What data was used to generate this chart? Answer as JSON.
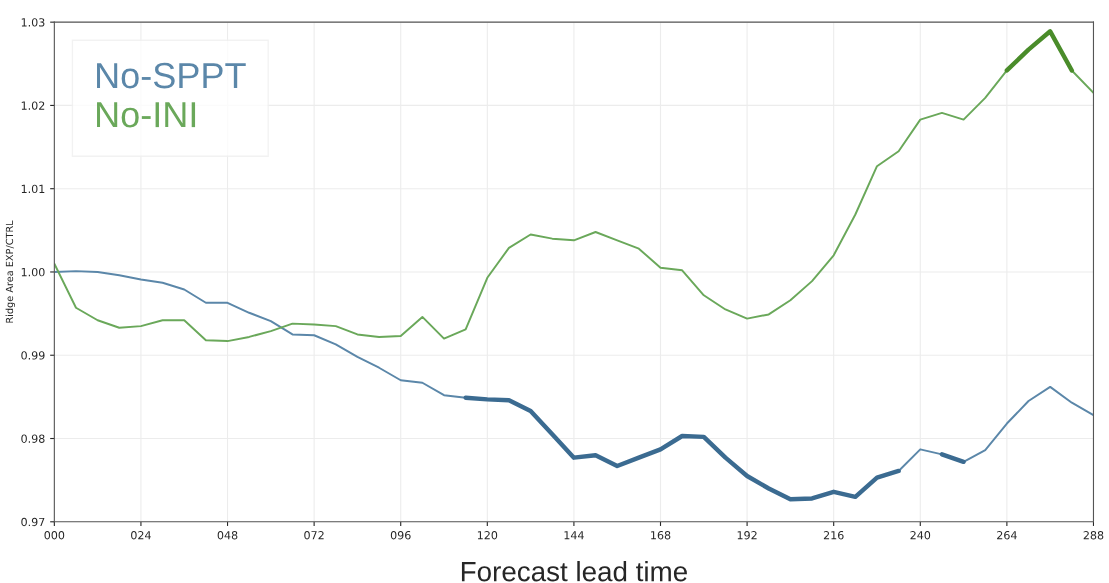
{
  "chart_data": {
    "type": "line",
    "xlabel": "Forecast lead time",
    "ylabel": "Ridge Area EXP/CTRL",
    "x": [
      0,
      6,
      12,
      18,
      24,
      30,
      36,
      42,
      48,
      54,
      60,
      66,
      72,
      78,
      84,
      90,
      96,
      102,
      108,
      114,
      120,
      126,
      132,
      138,
      144,
      150,
      156,
      162,
      168,
      174,
      180,
      186,
      192,
      198,
      204,
      210,
      216,
      222,
      228,
      234,
      240,
      246,
      252,
      258,
      264,
      270,
      276,
      282,
      288
    ],
    "series": [
      {
        "name": "No-SPPT",
        "color": "#5b87a9",
        "values": [
          1.0,
          1.0001,
          1.0,
          0.9996,
          0.9991,
          0.9987,
          0.9979,
          0.9963,
          0.9963,
          0.9951,
          0.9941,
          0.9925,
          0.9924,
          0.9913,
          0.9898,
          0.9885,
          0.987,
          0.9867,
          0.9852,
          0.9849,
          0.9847,
          0.9846,
          0.9833,
          0.9805,
          0.9777,
          0.978,
          0.9767,
          0.9777,
          0.9787,
          0.9803,
          0.9802,
          0.9777,
          0.9755,
          0.974,
          0.9727,
          0.9728,
          0.9736,
          0.973,
          0.9753,
          0.9761,
          0.9787,
          0.9781,
          0.9772,
          0.9786,
          0.9818,
          0.9845,
          0.9862,
          0.9843,
          0.9828
        ]
      },
      {
        "name": "No-INI",
        "color": "#6aa85a",
        "values": [
          1.001,
          0.9957,
          0.9942,
          0.9933,
          0.9935,
          0.9942,
          0.9942,
          0.9918,
          0.9917,
          0.9922,
          0.9929,
          0.9938,
          0.9937,
          0.9935,
          0.9925,
          0.9922,
          0.9923,
          0.9946,
          0.992,
          0.9931,
          0.9993,
          1.0029,
          1.0045,
          1.004,
          1.0038,
          1.0048,
          1.0038,
          1.0028,
          1.0005,
          1.0002,
          0.9972,
          0.9955,
          0.9944,
          0.9949,
          0.9966,
          0.9989,
          1.002,
          1.0069,
          1.0127,
          1.0145,
          1.0183,
          1.0191,
          1.0183,
          1.0209,
          1.0242,
          1.0267,
          1.0289,
          1.0242,
          1.0215
        ]
      },
      {
        "color": "#3b6b91",
        "values": [
          null,
          null,
          null,
          null,
          null,
          null,
          null,
          null,
          null,
          null,
          null,
          null,
          null,
          null,
          null,
          null,
          null,
          null,
          null,
          0.9849,
          0.9847,
          0.9846,
          0.9833,
          0.9805,
          0.9777,
          0.978,
          0.9767,
          0.9777,
          0.9787,
          0.9803,
          0.9802,
          0.9777,
          0.9755,
          0.974,
          0.9727,
          0.9728,
          0.9736,
          0.973,
          0.9753,
          0.9761,
          null,
          0.9781,
          0.9772,
          null,
          null,
          null,
          null,
          null,
          null
        ]
      },
      {
        "color": "#4a8c2a",
        "values": [
          null,
          null,
          null,
          null,
          null,
          null,
          null,
          null,
          null,
          null,
          null,
          null,
          null,
          null,
          null,
          null,
          null,
          null,
          null,
          null,
          null,
          null,
          null,
          null,
          null,
          null,
          null,
          null,
          null,
          null,
          null,
          null,
          null,
          null,
          null,
          null,
          null,
          null,
          null,
          null,
          null,
          null,
          null,
          null,
          1.0242,
          1.0267,
          1.0289,
          1.0242,
          null
        ]
      }
    ],
    "xlim": [
      0,
      288
    ],
    "ylim": [
      0.97,
      1.03
    ],
    "xticks": [
      {
        "value": 0,
        "label": "000"
      },
      {
        "value": 24,
        "label": "024"
      },
      {
        "value": 48,
        "label": "048"
      },
      {
        "value": 72,
        "label": "072"
      },
      {
        "value": 96,
        "label": "096"
      },
      {
        "value": 120,
        "label": "120"
      },
      {
        "value": 144,
        "label": "144"
      },
      {
        "value": 168,
        "label": "168"
      },
      {
        "value": 192,
        "label": "192"
      },
      {
        "value": 216,
        "label": "216"
      },
      {
        "value": 240,
        "label": "240"
      },
      {
        "value": 264,
        "label": "264"
      },
      {
        "value": 288,
        "label": "288"
      }
    ],
    "yticks": [
      {
        "value": 0.97,
        "label": "0.97"
      },
      {
        "value": 0.98,
        "label": "0.98"
      },
      {
        "value": 0.99,
        "label": "0.99"
      },
      {
        "value": 1.0,
        "label": "1.00"
      },
      {
        "value": 1.01,
        "label": "1.01"
      },
      {
        "value": 1.02,
        "label": "1.02"
      },
      {
        "value": 1.03,
        "label": "1.03"
      }
    ],
    "grid": true,
    "legend": "top left",
    "line_style": "solid",
    "marker": "none"
  }
}
